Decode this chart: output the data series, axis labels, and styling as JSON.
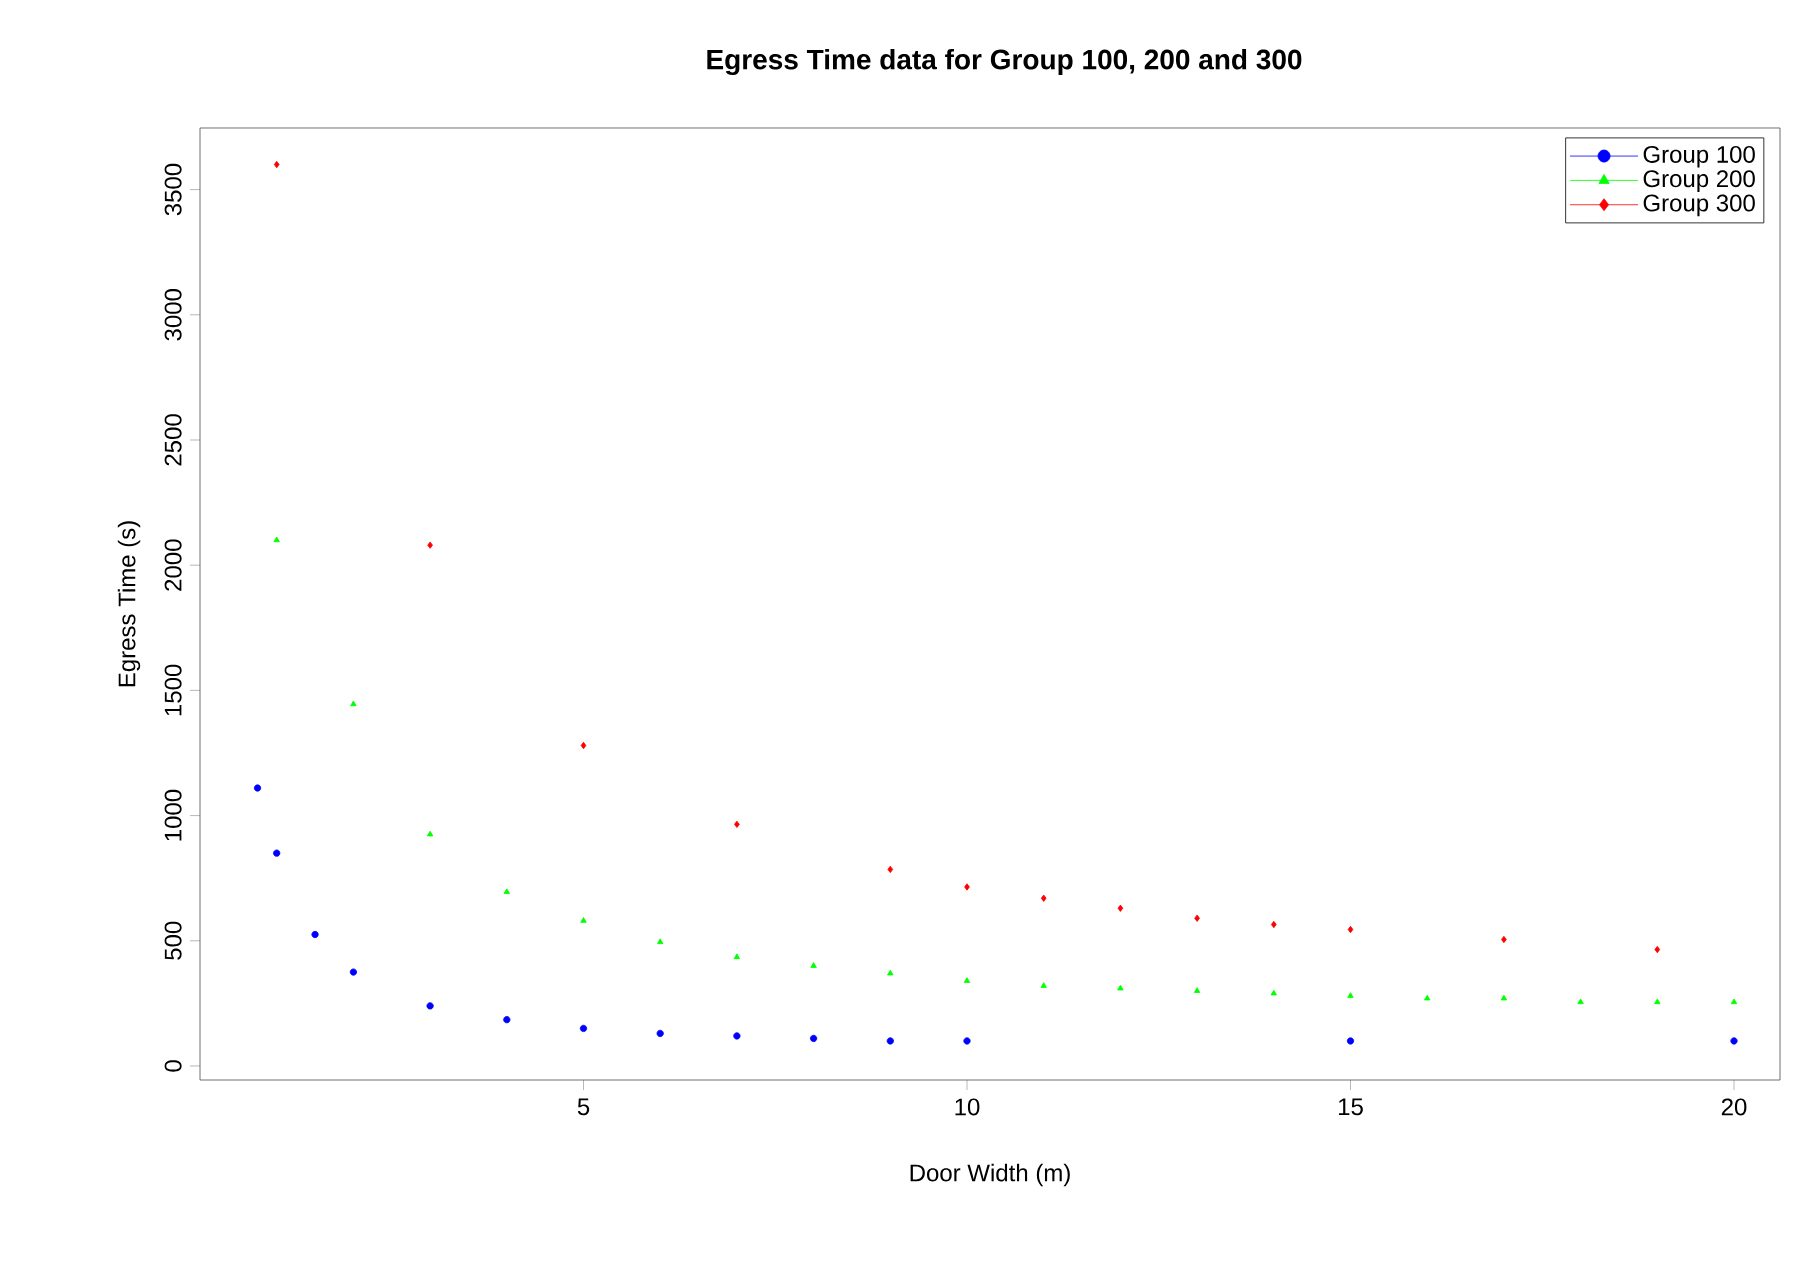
{
  "chart_data": {
    "type": "scatter",
    "title": "Egress Time data for Group 100, 200 and 300",
    "xlabel": "Door Width (m)",
    "ylabel": "Egress Time (s)",
    "xlim": [
      0,
      20.6
    ],
    "xticks": [
      5,
      10,
      15,
      20
    ],
    "ylim": [
      -56,
      3746
    ],
    "yticks": [
      0,
      500,
      1000,
      1500,
      2000,
      2500,
      3000,
      3500
    ],
    "grid": false,
    "legend": "top right",
    "series": [
      {
        "name": "Group 100",
        "color": "#0000ff",
        "marker": "circle",
        "x": [
          0.75,
          1,
          1.5,
          2,
          3,
          4,
          5,
          6,
          7,
          8,
          9,
          10,
          15,
          20
        ],
        "values": [
          1110,
          850,
          525,
          375,
          240,
          185,
          150,
          130,
          120,
          110,
          100,
          100,
          100,
          100
        ]
      },
      {
        "name": "Group 200",
        "color": "#00ff00",
        "marker": "triangle",
        "x": [
          1,
          2,
          3,
          4,
          5,
          6,
          7,
          8,
          9,
          10,
          11,
          12,
          13,
          14,
          15,
          16,
          17,
          18,
          19,
          20
        ],
        "values": [
          2100,
          1445,
          925,
          695,
          580,
          495,
          435,
          400,
          370,
          340,
          320,
          310,
          300,
          290,
          280,
          270,
          270,
          255,
          255,
          255
        ]
      },
      {
        "name": "Group 300",
        "color": "#ff0000",
        "marker": "diamond",
        "x": [
          1,
          3,
          5,
          7,
          9,
          10,
          11,
          12,
          13,
          14,
          15,
          17,
          19
        ],
        "values": [
          3600,
          2080,
          1280,
          965,
          785,
          715,
          670,
          630,
          590,
          565,
          545,
          505,
          465
        ]
      }
    ]
  }
}
